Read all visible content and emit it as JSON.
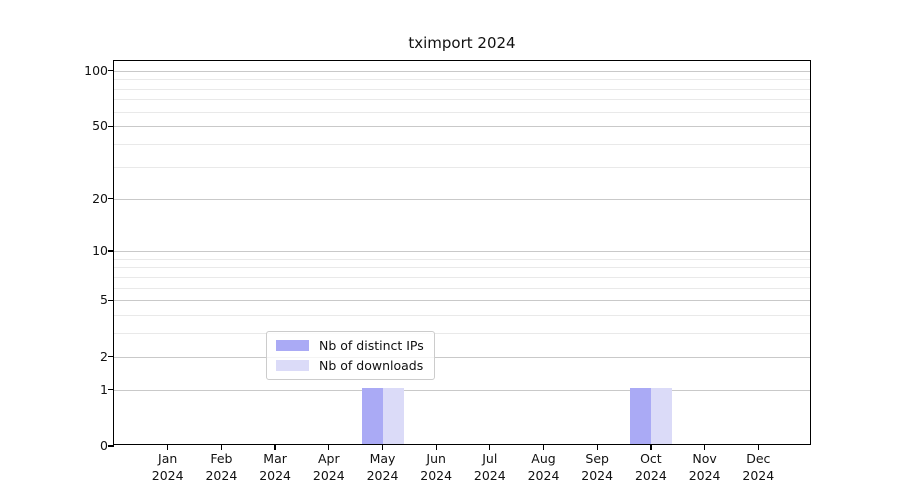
{
  "figure": {
    "background": "#ffffff"
  },
  "chart_data": {
    "type": "bar",
    "title": "tximport 2024",
    "categories": [
      "Jan",
      "Feb",
      "Mar",
      "Apr",
      "May",
      "Jun",
      "Jul",
      "Aug",
      "Sep",
      "Oct",
      "Nov",
      "Dec"
    ],
    "x_year_label": "2024",
    "series": [
      {
        "name": "Nb of distinct IPs",
        "color": "#aaaaf5",
        "values": [
          0,
          0,
          0,
          0,
          1,
          0,
          0,
          0,
          0,
          1,
          0,
          0
        ]
      },
      {
        "name": "Nb of downloads",
        "color": "#dbdbf8",
        "values": [
          0,
          0,
          0,
          0,
          1,
          0,
          0,
          0,
          0,
          1,
          0,
          0
        ]
      }
    ],
    "xlabel": "",
    "ylabel": "",
    "y_axis": {
      "scale": "log1p",
      "tick_values": [
        0,
        1,
        2,
        5,
        10,
        20,
        50,
        100
      ],
      "tick_labels": [
        "0",
        "1",
        "2",
        "5",
        "10",
        "20",
        "50",
        "100"
      ],
      "minor_gridline_values": [
        3,
        4,
        6,
        7,
        8,
        9,
        30,
        40,
        60,
        70,
        80,
        90
      ],
      "ylim": [
        0,
        112
      ]
    },
    "grid": "on",
    "legend_position": "lower center-left"
  },
  "colors": {
    "grid_major": "#c9c9c9",
    "grid_minor": "#e9e9e9",
    "axis": "#000000",
    "text": "#111111",
    "legend_border": "#cccccc",
    "legend_background": "rgba(255,255,255,0.8)"
  }
}
